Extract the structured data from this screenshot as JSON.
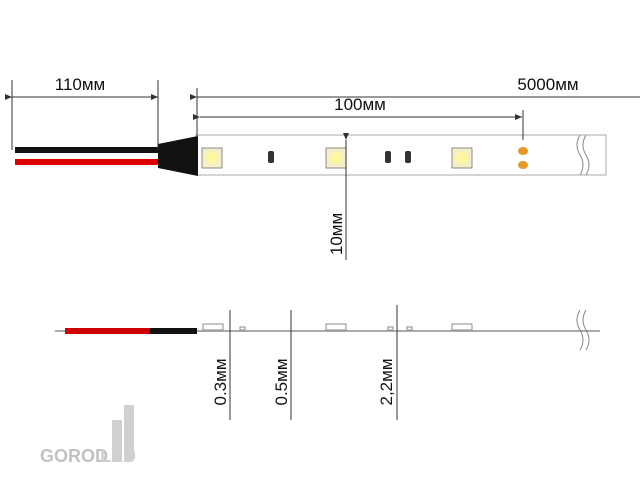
{
  "dimensions": {
    "wire_length": "110мм",
    "strip_length": "5000мм",
    "segment_length": "100мм",
    "strip_width": "10мм",
    "thickness_a": "0.3мм",
    "thickness_b": "0.5мм",
    "thickness_c": "2,2мм"
  },
  "logo": {
    "text": "GOROD",
    "suffix": "LED"
  }
}
